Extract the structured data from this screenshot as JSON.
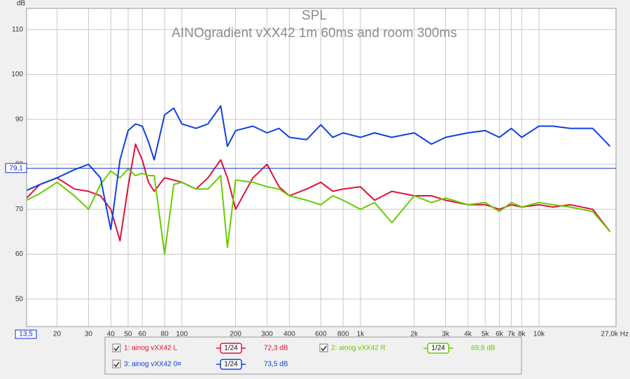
{
  "chart_data": {
    "type": "line",
    "title": "SPL",
    "subtitle": "AINOgradient vXX42 1m 60ms and room 300ms",
    "y_label": "dB",
    "log_x": true,
    "grid": true,
    "xlim": [
      13.5,
      27000
    ],
    "ylim": [
      43.9,
      114.7
    ],
    "xticks": [
      {
        "value": 13.5,
        "label": "13,5"
      },
      20,
      30,
      40,
      50,
      60,
      80,
      100,
      200,
      300,
      400,
      600,
      800,
      {
        "value": 1000,
        "label": "1k"
      },
      {
        "value": 2000,
        "label": "2k"
      },
      {
        "value": 3000,
        "label": "3k"
      },
      {
        "value": 4000,
        "label": "4k"
      },
      {
        "value": 5000,
        "label": "5k"
      },
      {
        "value": 6000,
        "label": "6k"
      },
      {
        "value": 7000,
        "label": "7k"
      },
      {
        "value": 8000,
        "label": "8k"
      },
      {
        "value": 10000,
        "label": "10k"
      },
      {
        "value": 27000,
        "label": "27,0k Hz"
      }
    ],
    "yticks": [
      50,
      60,
      70,
      80,
      90,
      100,
      110
    ],
    "cursor": {
      "value": 79.1,
      "label": "79,1",
      "color": "#1030d0"
    },
    "x": [
      13.5,
      16,
      20,
      25,
      30,
      35,
      40,
      45,
      50,
      55,
      60,
      65,
      70,
      80,
      90,
      100,
      120,
      140,
      165,
      180,
      200,
      250,
      300,
      350,
      400,
      500,
      600,
      700,
      800,
      1000,
      1200,
      1500,
      2000,
      2500,
      3000,
      4000,
      5000,
      6000,
      7000,
      8000,
      10000,
      12000,
      15000,
      20000,
      25000
    ],
    "series": [
      {
        "name": "1: ainog vXX42 L",
        "color": "#e0103a",
        "smoothing": "1/24",
        "level": "72,3 dB",
        "values": [
          72.5,
          75.5,
          77,
          74.5,
          74,
          73,
          70,
          63,
          75,
          84.5,
          81,
          76,
          74,
          77,
          76.5,
          76,
          74.5,
          77,
          81,
          77,
          70,
          77,
          80,
          75,
          73,
          74.5,
          76,
          74,
          74.5,
          75,
          72,
          74,
          73,
          73,
          72,
          71,
          71,
          70,
          71,
          70.5,
          71,
          70.5,
          71,
          70,
          65
        ]
      },
      {
        "name": "2: ainog vXX42 R",
        "color": "#66cc00",
        "smoothing": "1/24",
        "level": "69,8 dB",
        "values": [
          72,
          73.5,
          76,
          73,
          70,
          75.5,
          78.5,
          77,
          79,
          77.5,
          78,
          77.5,
          77.5,
          60,
          75.5,
          76,
          74.5,
          74.5,
          77.5,
          61.5,
          76.5,
          76,
          75,
          74.5,
          73,
          72,
          71,
          73,
          72,
          70,
          71.5,
          67,
          73,
          71.5,
          72.5,
          71,
          71.5,
          69.5,
          71.5,
          70.5,
          71.5,
          71,
          70.5,
          69.5,
          65
        ]
      },
      {
        "name": "3: ainog vXX42 0¤",
        "color": "#1040e0",
        "smoothing": "1/24",
        "level": "73,5 dB",
        "values": [
          74.2,
          75.5,
          77,
          78.8,
          80,
          77,
          65.5,
          81,
          87.5,
          89,
          88.5,
          85,
          81,
          91,
          92.5,
          89,
          88,
          89,
          93,
          84,
          87.5,
          88.5,
          87,
          88,
          86,
          85.5,
          88.8,
          86,
          87,
          86,
          87,
          86,
          87,
          84.5,
          86,
          87,
          87.5,
          86,
          88,
          86,
          88.5,
          88.5,
          88,
          88,
          84
        ]
      }
    ]
  }
}
